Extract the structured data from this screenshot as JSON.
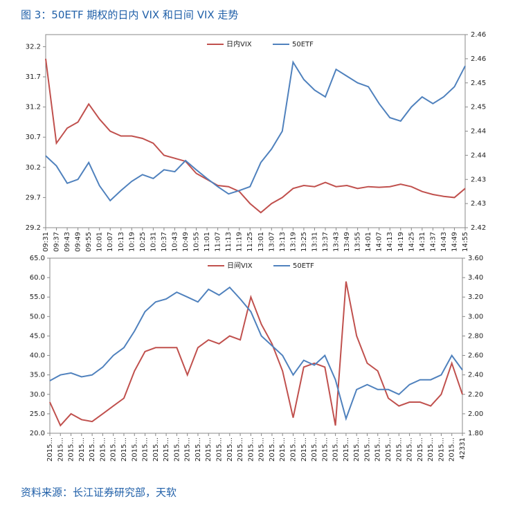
{
  "title": "图 3：50ETF 期权的日内 VIX 和日间 VIX 走势",
  "source": "资料来源：长江证券研究部，天软",
  "chart_data": [
    {
      "type": "line",
      "categories": [
        "09:31",
        "09:37",
        "09:43",
        "09:49",
        "09:55",
        "10:01",
        "10:07",
        "10:13",
        "10:19",
        "10:25",
        "10:31",
        "10:37",
        "10:43",
        "10:49",
        "10:55",
        "11:01",
        "11:07",
        "11:13",
        "11:19",
        "11:25",
        "13:01",
        "13:07",
        "13:13",
        "13:19",
        "13:25",
        "13:31",
        "13:37",
        "13:43",
        "13:49",
        "13:55",
        "14:01",
        "14:07",
        "14:13",
        "14:19",
        "14:25",
        "14:31",
        "14:37",
        "14:43",
        "14:49",
        "14:55"
      ],
      "series": [
        {
          "name": "日内VIX",
          "color": "#c0504d",
          "axis": "y",
          "values": [
            32.0,
            30.6,
            30.85,
            30.95,
            31.25,
            31.0,
            30.8,
            30.72,
            30.72,
            30.68,
            30.6,
            30.4,
            30.35,
            30.3,
            30.1,
            30.0,
            29.9,
            29.88,
            29.8,
            29.6,
            29.45,
            29.6,
            29.7,
            29.85,
            29.9,
            29.88,
            29.95,
            29.88,
            29.9,
            29.85,
            29.88,
            29.87,
            29.88,
            29.92,
            29.88,
            29.8,
            29.75,
            29.72,
            29.7,
            29.85
          ]
        },
        {
          "name": "50ETF",
          "color": "#4f81bd",
          "axis": "y2",
          "values": [
            2.4349,
            2.4328,
            2.4292,
            2.43,
            2.4335,
            2.4287,
            2.4256,
            2.4277,
            2.4296,
            2.431,
            2.4302,
            2.432,
            2.4316,
            2.4339,
            2.432,
            2.4302,
            2.4285,
            2.427,
            2.4277,
            2.4285,
            2.4335,
            2.4363,
            2.44,
            2.4543,
            2.4507,
            2.4485,
            2.4471,
            2.4528,
            2.4514,
            2.45,
            2.4492,
            2.4457,
            2.4428,
            2.4421,
            2.445,
            2.4471,
            2.4457,
            2.4471,
            2.4492,
            2.4535
          ]
        }
      ],
      "ylim": [
        29.2,
        32.4
      ],
      "yticks": [
        29.2,
        29.7,
        30.2,
        30.7,
        31.2,
        31.7,
        32.2
      ],
      "y2lim": [
        2.42,
        2.46
      ],
      "y2ticks": [
        {
          "value": 2.42,
          "label": "2.42"
        },
        {
          "value": 2.425,
          "label": "2.43"
        },
        {
          "value": 2.43,
          "label": "2.43"
        },
        {
          "value": 2.435,
          "label": "2.44"
        },
        {
          "value": 2.44,
          "label": "2.44"
        },
        {
          "value": 2.445,
          "label": "2.45"
        },
        {
          "value": 2.45,
          "label": "2.45"
        },
        {
          "value": 2.455,
          "label": "2.46"
        },
        {
          "value": 2.46,
          "label": "2.46"
        }
      ],
      "legend": "top"
    },
    {
      "type": "line",
      "categories": [
        "2015...",
        "2015...",
        "2015...",
        "2015...",
        "2015...",
        "2015...",
        "2015...",
        "2015...",
        "2015...",
        "2015...",
        "2015...",
        "2015...",
        "2015...",
        "2015...",
        "2015...",
        "2015...",
        "2015...",
        "2015...",
        "2015...",
        "2015...",
        "2015...",
        "2015...",
        "2015...",
        "2015...",
        "2015...",
        "2015...",
        "2015...",
        "2015...",
        "2015...",
        "2015...",
        "2015...",
        "2015...",
        "2015...",
        "2015...",
        "2015...",
        "2015...",
        "2015...",
        "2015...",
        "2015...",
        "42331"
      ],
      "series": [
        {
          "name": "日间VIX",
          "color": "#c0504d",
          "axis": "y",
          "values": [
            28,
            22,
            25,
            23.5,
            23,
            25,
            27,
            29,
            36,
            41,
            42,
            42,
            42,
            35,
            42,
            44,
            43,
            45,
            44,
            55,
            48,
            43,
            36,
            24,
            37,
            38,
            37,
            22,
            59,
            45,
            38,
            36,
            29,
            27,
            28,
            28,
            27,
            30,
            38,
            30
          ]
        },
        {
          "name": "50ETF",
          "color": "#4f81bd",
          "axis": "y2",
          "values": [
            2.34,
            2.4,
            2.42,
            2.38,
            2.4,
            2.48,
            2.6,
            2.68,
            2.85,
            3.05,
            3.15,
            3.18,
            3.25,
            3.2,
            3.15,
            3.28,
            3.22,
            3.3,
            3.18,
            3.05,
            2.8,
            2.7,
            2.6,
            2.4,
            2.55,
            2.5,
            2.6,
            2.35,
            1.95,
            2.25,
            2.3,
            2.25,
            2.25,
            2.2,
            2.3,
            2.35,
            2.35,
            2.4,
            2.6,
            2.45
          ]
        }
      ],
      "ylim": [
        20,
        65
      ],
      "yticks": [
        {
          "value": 20,
          "label": "20.0"
        },
        {
          "value": 25,
          "label": "25.0"
        },
        {
          "value": 30,
          "label": "30.0"
        },
        {
          "value": 35,
          "label": "35.0"
        },
        {
          "value": 40,
          "label": "40.0"
        },
        {
          "value": 45,
          "label": "45.0"
        },
        {
          "value": 50,
          "label": "50.0"
        },
        {
          "value": 55,
          "label": "55.0"
        },
        {
          "value": 60,
          "label": "60.0"
        },
        {
          "value": 65,
          "label": "65.0"
        }
      ],
      "y2lim": [
        1.8,
        3.6
      ],
      "y2ticks": [
        {
          "value": 1.8,
          "label": "1.80"
        },
        {
          "value": 2.0,
          "label": "2.00"
        },
        {
          "value": 2.2,
          "label": "2.20"
        },
        {
          "value": 2.4,
          "label": "2.40"
        },
        {
          "value": 2.6,
          "label": "2.60"
        },
        {
          "value": 2.8,
          "label": "2.80"
        },
        {
          "value": 3.0,
          "label": "3.00"
        },
        {
          "value": 3.2,
          "label": "3.20"
        },
        {
          "value": 3.4,
          "label": "3.40"
        },
        {
          "value": 3.6,
          "label": "3.60"
        }
      ],
      "legend": "top"
    }
  ]
}
